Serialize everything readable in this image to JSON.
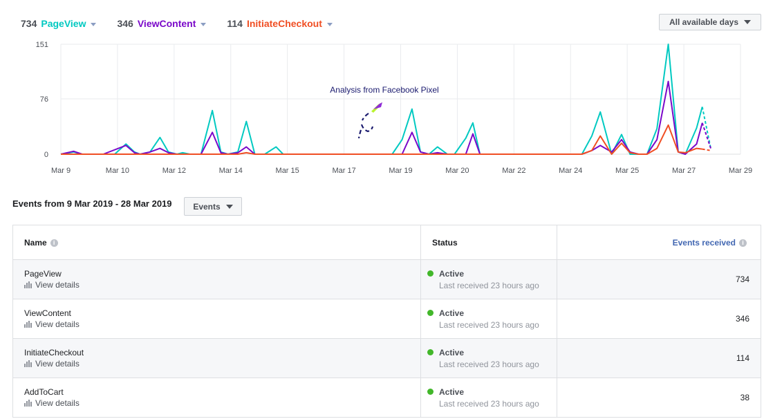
{
  "metrics": [
    {
      "count": "734",
      "label": "PageView",
      "color": "#00c9c1"
    },
    {
      "count": "346",
      "label": "ViewContent",
      "color": "#7a08c9"
    },
    {
      "count": "114",
      "label": "InitiateCheckout",
      "color": "#f04e23"
    }
  ],
  "days_filter": "All available days",
  "chart_data": {
    "type": "line",
    "categories": [
      "Mar 9",
      "",
      "Mar 10",
      "",
      "Mar 12",
      "",
      "Mar 14",
      "",
      "Mar 15",
      "",
      "Mar 17",
      "",
      "Mar 19",
      "",
      "Mar 20",
      "",
      "Mar 22",
      "",
      "Mar 24",
      "",
      "Mar 25",
      "",
      "Mar 27",
      "",
      "Mar 29"
    ],
    "x_tick_labels": [
      "Mar 9",
      "Mar 10",
      "Mar 12",
      "Mar 14",
      "Mar 15",
      "Mar 17",
      "Mar 19",
      "Mar 20",
      "Mar 22",
      "Mar 24",
      "Mar 25",
      "Mar 27",
      "Mar 29"
    ],
    "y_ticks": [
      "151",
      "76",
      "0"
    ],
    "ylim": [
      0,
      151
    ],
    "grid": true,
    "annotation": "Analysis from Facebook Pixel",
    "series": [
      {
        "name": "PageView",
        "color": "#00c9c1",
        "points": [
          [
            0,
            0
          ],
          [
            0.9,
            3
          ],
          [
            1.5,
            0
          ],
          [
            2.4,
            0
          ],
          [
            3.0,
            0
          ],
          [
            3.8,
            0
          ],
          [
            4.6,
            14
          ],
          [
            5.2,
            3
          ],
          [
            5.6,
            0
          ],
          [
            6.3,
            3
          ],
          [
            7.0,
            23
          ],
          [
            7.6,
            3
          ],
          [
            8.2,
            0
          ],
          [
            8.6,
            2
          ],
          [
            9.1,
            0
          ],
          [
            9.9,
            0
          ],
          [
            10.7,
            60
          ],
          [
            11.3,
            3
          ],
          [
            11.8,
            0
          ],
          [
            12.5,
            3
          ],
          [
            13.1,
            45
          ],
          [
            13.7,
            0
          ],
          [
            14.4,
            0
          ],
          [
            15.2,
            10
          ],
          [
            15.7,
            0
          ],
          [
            17.0,
            0
          ],
          [
            19.0,
            0
          ],
          [
            22.1,
            0
          ],
          [
            23.4,
            0
          ],
          [
            24.1,
            20
          ],
          [
            24.8,
            62
          ],
          [
            25.4,
            3
          ],
          [
            26.0,
            0
          ],
          [
            26.6,
            10
          ],
          [
            27.3,
            0
          ],
          [
            27.8,
            0
          ],
          [
            28.6,
            22
          ],
          [
            29.1,
            43
          ],
          [
            29.6,
            0
          ],
          [
            31.0,
            0
          ],
          [
            33.0,
            0
          ],
          [
            35.0,
            0
          ],
          [
            36.0,
            0
          ],
          [
            36.8,
            0
          ],
          [
            37.5,
            25
          ],
          [
            38.1,
            58
          ],
          [
            38.9,
            0
          ],
          [
            39.6,
            27
          ],
          [
            40.2,
            0
          ],
          [
            40.8,
            0
          ],
          [
            41.4,
            0
          ],
          [
            42.1,
            35
          ],
          [
            42.9,
            151
          ],
          [
            43.6,
            3
          ],
          [
            44.1,
            0
          ],
          [
            44.9,
            36
          ],
          [
            45.3,
            65
          ],
          [
            45.9,
            8
          ]
        ]
      },
      {
        "name": "ViewContent",
        "color": "#7a08c9",
        "points": [
          [
            0,
            0
          ],
          [
            0.9,
            4
          ],
          [
            1.5,
            0
          ],
          [
            3.0,
            0
          ],
          [
            4.6,
            12
          ],
          [
            5.2,
            2
          ],
          [
            5.6,
            0
          ],
          [
            6.3,
            3
          ],
          [
            7.0,
            8
          ],
          [
            7.6,
            2
          ],
          [
            8.2,
            0
          ],
          [
            9.9,
            0
          ],
          [
            10.7,
            30
          ],
          [
            11.3,
            2
          ],
          [
            11.8,
            0
          ],
          [
            12.5,
            2
          ],
          [
            13.1,
            10
          ],
          [
            13.7,
            0
          ],
          [
            15.2,
            0
          ],
          [
            22.1,
            0
          ],
          [
            24.1,
            0
          ],
          [
            24.8,
            30
          ],
          [
            25.4,
            3
          ],
          [
            26.0,
            0
          ],
          [
            26.6,
            2
          ],
          [
            27.3,
            0
          ],
          [
            27.8,
            0
          ],
          [
            28.6,
            0
          ],
          [
            29.1,
            28
          ],
          [
            29.6,
            0
          ],
          [
            36.8,
            0
          ],
          [
            37.5,
            5
          ],
          [
            38.1,
            12
          ],
          [
            38.9,
            3
          ],
          [
            39.6,
            20
          ],
          [
            40.2,
            3
          ],
          [
            40.8,
            0
          ],
          [
            41.4,
            0
          ],
          [
            42.1,
            20
          ],
          [
            42.9,
            100
          ],
          [
            43.6,
            3
          ],
          [
            44.1,
            0
          ],
          [
            44.9,
            14
          ],
          [
            45.3,
            43
          ],
          [
            45.9,
            8
          ]
        ]
      },
      {
        "name": "InitiateCheckout",
        "color": "#f04e23",
        "points": [
          [
            0,
            0
          ],
          [
            10.7,
            0
          ],
          [
            12.5,
            0
          ],
          [
            13.1,
            2
          ],
          [
            13.7,
            0
          ],
          [
            24.8,
            0
          ],
          [
            29.1,
            0
          ],
          [
            36.8,
            0
          ],
          [
            37.5,
            5
          ],
          [
            38.1,
            25
          ],
          [
            38.9,
            0
          ],
          [
            39.6,
            15
          ],
          [
            40.2,
            2
          ],
          [
            40.8,
            0
          ],
          [
            41.4,
            0
          ],
          [
            42.1,
            8
          ],
          [
            42.9,
            40
          ],
          [
            43.6,
            3
          ],
          [
            44.1,
            2
          ],
          [
            44.9,
            8
          ],
          [
            45.3,
            7
          ],
          [
            45.9,
            5
          ]
        ]
      }
    ]
  },
  "events_title": "Events from 9 Mar 2019 - 28 Mar 2019",
  "events_button": "Events",
  "table": {
    "columns": {
      "name": "Name",
      "status": "Status",
      "events": "Events received"
    },
    "rows": [
      {
        "name": "PageView",
        "details": "View details",
        "status": "Active",
        "last": "Last received 23 hours ago",
        "count": "734"
      },
      {
        "name": "ViewContent",
        "details": "View details",
        "status": "Active",
        "last": "Last received 23 hours ago",
        "count": "346"
      },
      {
        "name": "InitiateCheckout",
        "details": "View details",
        "status": "Active",
        "last": "Last received 23 hours ago",
        "count": "114"
      },
      {
        "name": "AddToCart",
        "details": "View details",
        "status": "Active",
        "last": "Last received 23 hours ago",
        "count": "38"
      }
    ]
  }
}
